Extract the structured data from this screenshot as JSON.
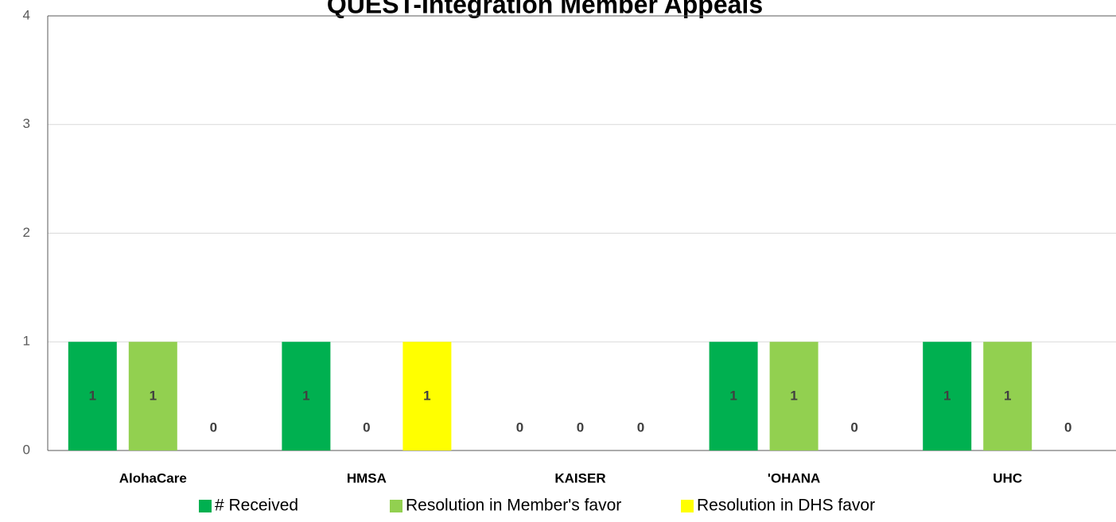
{
  "chart_data": {
    "type": "bar",
    "title": "QUEST-Integration Member Appeals",
    "categories": [
      "AlohaCare",
      "HMSA",
      "KAISER",
      "'OHANA",
      "UHC"
    ],
    "series": [
      {
        "name": "# Received",
        "color": "#00b050",
        "values": [
          1,
          1,
          0,
          1,
          1
        ]
      },
      {
        "name": "Resolution in Member's favor",
        "color": "#92d050",
        "values": [
          1,
          0,
          0,
          1,
          1
        ]
      },
      {
        "name": "Resolution in DHS favor",
        "color": "#ffff00",
        "values": [
          0,
          1,
          0,
          0,
          0
        ]
      }
    ],
    "ylim": [
      0,
      4
    ],
    "yticks": [
      0,
      1,
      2,
      3,
      4
    ],
    "grid": true,
    "legend": "bottom"
  }
}
